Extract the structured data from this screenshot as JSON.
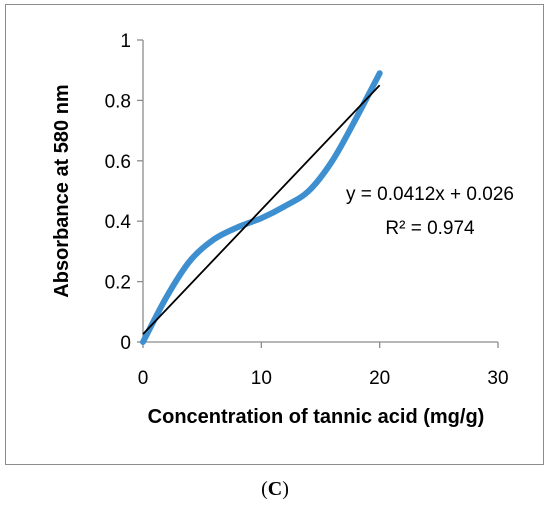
{
  "chart_data": {
    "type": "line",
    "xlabel": "Concentration of tannic acid (mg/g)",
    "ylabel": "Absorbance at 580 nm",
    "xlim": [
      0,
      30
    ],
    "ylim": [
      0,
      1
    ],
    "x_ticks": [
      0,
      10,
      20,
      30
    ],
    "y_ticks": [
      0,
      0.2,
      0.4,
      0.6,
      0.8,
      1
    ],
    "x_tick_labels": [
      "0",
      "10",
      "20",
      "30"
    ],
    "y_tick_labels": [
      "0",
      "0.2",
      "0.4",
      "0.6",
      "0.8",
      "1"
    ],
    "grid": false,
    "legend": "none",
    "series": [
      {
        "x": [
          0,
          2,
          4,
          6,
          8,
          10,
          12,
          14,
          16,
          18,
          20
        ],
        "y": [
          0,
          0.15,
          0.27,
          0.34,
          0.38,
          0.41,
          0.45,
          0.5,
          0.6,
          0.74,
          0.89
        ],
        "color": "#3e8fd0",
        "smooth": true
      }
    ],
    "trendline": {
      "slope": 0.0412,
      "intercept": 0.026,
      "x_range": [
        0,
        20
      ],
      "color": "#000000"
    },
    "annotations": {
      "equation": "y = 0.0412x + 0.026",
      "r_squared": "R² = 0.974"
    }
  },
  "panel_label_open": "(",
  "panel_label_letter": "C",
  "panel_label_close": ")"
}
